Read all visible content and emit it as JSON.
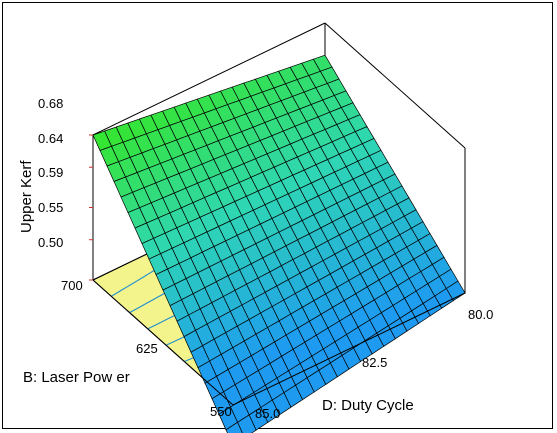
{
  "chart_data": {
    "type": "surface",
    "zlabel": "Upper Kerf",
    "xlabel": "D: Duty Cycle",
    "ylabel": "B: Laser Pow er",
    "z_ticks": [
      "0.50",
      "0.55",
      "0.59",
      "0.64",
      "0.68"
    ],
    "x_ticks": [
      "85.0",
      "82.5",
      "80.0"
    ],
    "y_ticks": [
      "550",
      "625",
      "700"
    ],
    "x_range": [
      80.0,
      85.0
    ],
    "y_range": [
      550,
      700
    ],
    "z_range": [
      0.5,
      0.68
    ],
    "grid_steps": 20,
    "surface_corners": [
      {
        "duty_cycle": 85.0,
        "laser_power": 700,
        "upper_kerf": 0.68
      },
      {
        "duty_cycle": 80.0,
        "laser_power": 700,
        "upper_kerf": 0.64
      },
      {
        "duty_cycle": 80.0,
        "laser_power": 550,
        "upper_kerf": 0.5
      },
      {
        "duty_cycle": 85.0,
        "laser_power": 550,
        "upper_kerf": 0.45
      }
    ],
    "colors": {
      "surface_high": "#36e62a",
      "surface_mid": "#2fd6b4",
      "surface_low": "#1e9bf0",
      "floor": "#f4f48c",
      "contour": "#1f8fd0"
    }
  }
}
